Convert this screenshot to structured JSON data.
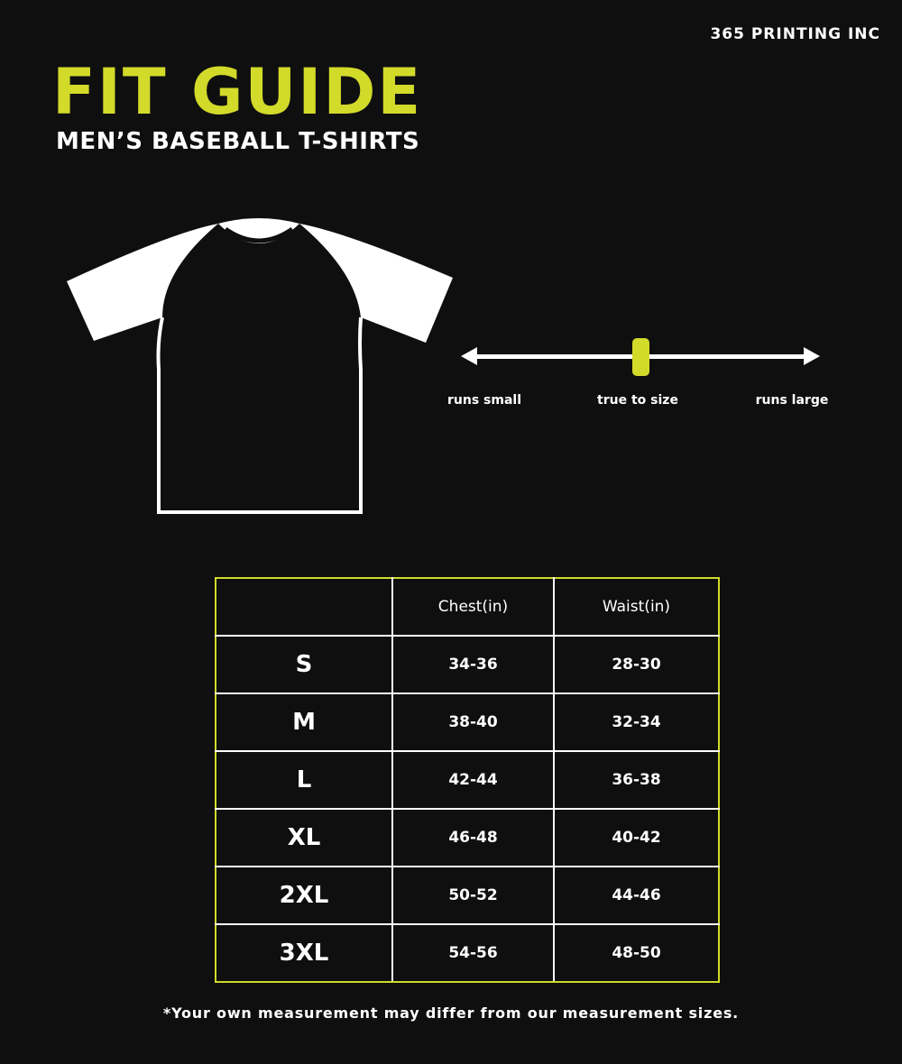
{
  "brand": "365 PRINTING INC",
  "title": "FIT GUIDE",
  "subtitle": "MEN’S BASEBALL T-SHIRTS",
  "colors": {
    "accent": "#d2da2a",
    "background": "#0f0f0f",
    "text": "#ffffff"
  },
  "fit_scale": {
    "labels": {
      "small": "runs small",
      "true": "true to size",
      "large": "runs large"
    },
    "position_percent": 50
  },
  "size_table": {
    "headers": [
      "",
      "Chest(in)",
      "Waist(in)"
    ],
    "rows": [
      {
        "size": "S",
        "chest": "34-36",
        "waist": "28-30"
      },
      {
        "size": "M",
        "chest": "38-40",
        "waist": "32-34"
      },
      {
        "size": "L",
        "chest": "42-44",
        "waist": "36-38"
      },
      {
        "size": "XL",
        "chest": "46-48",
        "waist": "40-42"
      },
      {
        "size": "2XL",
        "chest": "50-52",
        "waist": "44-46"
      },
      {
        "size": "3XL",
        "chest": "54-56",
        "waist": "48-50"
      }
    ]
  },
  "footnote": "*Your own measurement may differ from our measurement sizes."
}
